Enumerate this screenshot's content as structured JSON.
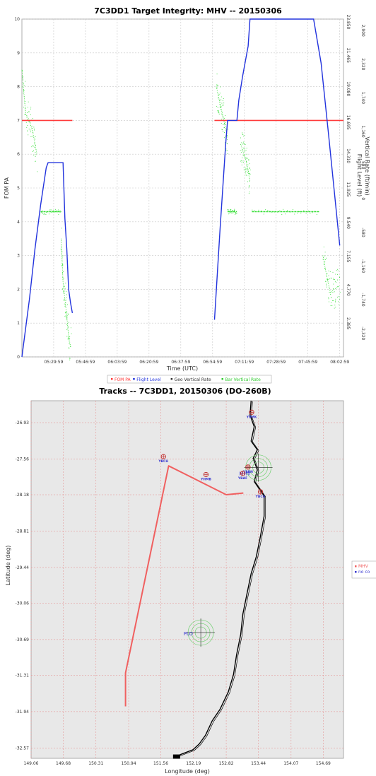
{
  "chart_data": [
    {
      "type": "line",
      "title": "7C3DD1 Target Integrity: MHV -- 20150306",
      "xlabel": "Time (UTC)",
      "ylabel": "FOM PA",
      "ylabel_right_1": "Flight Level (ft)",
      "ylabel_right_2": "Vertical Rate (ft/min)",
      "x_ticks": [
        "05:29:59",
        "05:46:59",
        "06:03:59",
        "06:20:59",
        "06:37:59",
        "06:54:59",
        "07:11:59",
        "07:28:59",
        "07:45:59",
        "08:02:59"
      ],
      "y_ticks": [
        "0",
        "1",
        "2",
        "3",
        "4",
        "5",
        "6",
        "7",
        "8",
        "9",
        "10"
      ],
      "y_right_1_ticks": [
        "2.385",
        "4.770",
        "7.155",
        "9.540",
        "11.925",
        "14.310",
        "16.695",
        "19.080",
        "21.465",
        "23.850"
      ],
      "y_right_2_ticks": [
        "-2,320",
        "-1,740",
        "-1,160",
        "-580",
        "0",
        "580",
        "1,160",
        "1,740",
        "2,320",
        "2,900"
      ],
      "ylim": [
        0,
        10
      ],
      "legend": [
        "FOM PA",
        "Flight Level",
        "Geo Vertical Rate",
        "Bar Vertical Rate"
      ],
      "legend_placement": "bottom",
      "series": [
        {
          "name": "FOM PA",
          "color": "#ff3b3b",
          "segments": [
            {
              "x": [
                "05:13",
                "05:40"
              ],
              "y": [
                7,
                7
              ]
            },
            {
              "x": [
                "06:56",
                "08:05"
              ],
              "y": [
                7,
                7
              ]
            }
          ]
        },
        {
          "name": "Flight Level",
          "color": "#2233dd",
          "segments": [
            {
              "x": [
                "05:13",
                "05:17",
                "05:20",
                "05:23",
                "05:26",
                "05:27",
                "05:35",
                "05:36",
                "05:37",
                "05:38",
                "05:39",
                "05:40"
              ],
              "y": [
                0,
                1.7,
                3.2,
                4.5,
                5.6,
                5.75,
                5.75,
                4.1,
                3.2,
                2.0,
                1.6,
                1.3
              ]
            },
            {
              "x": [
                "06:56",
                "06:59",
                "07:02",
                "07:03",
                "07:08",
                "07:09",
                "07:11",
                "07:14",
                "07:15",
                "07:19",
                "07:49",
                "07:53",
                "07:57",
                "08:01",
                "08:03"
              ],
              "y": [
                1.1,
                3.8,
                6.3,
                7.0,
                7.0,
                7.6,
                8.3,
                9.2,
                10.0,
                10.0,
                10.0,
                8.7,
                6.6,
                4.4,
                3.3
              ]
            }
          ]
        },
        {
          "name": "Bar Vertical Rate",
          "color": "#33dd33",
          "segments": [
            {
              "x": [
                "05:13",
                "05:15",
                "05:17",
                "05:19",
                "05:21"
              ],
              "y": [
                8.5,
                7.2,
                7.0,
                6.6,
                6.0
              ]
            },
            {
              "x": [
                "05:23",
                "05:34"
              ],
              "y": [
                4.3,
                4.3
              ]
            },
            {
              "x": [
                "05:34",
                "05:35",
                "05:37",
                "05:38",
                "05:39"
              ],
              "y": [
                3.5,
                2.2,
                1.2,
                0.6,
                0.3
              ]
            },
            {
              "x": [
                "06:57",
                "06:59",
                "07:01",
                "07:03"
              ],
              "y": [
                8.0,
                7.5,
                7.0,
                6.5
              ]
            },
            {
              "x": [
                "07:03",
                "07:08"
              ],
              "y": [
                4.3,
                4.3
              ]
            },
            {
              "x": [
                "07:10",
                "07:13",
                "07:15"
              ],
              "y": [
                6.3,
                5.8,
                5.2
              ]
            },
            {
              "x": [
                "07:16",
                "07:52"
              ],
              "y": [
                4.3,
                4.3
              ]
            },
            {
              "x": [
                "07:54",
                "07:56",
                "07:58",
                "08:00",
                "08:03"
              ],
              "y": [
                3.0,
                2.4,
                1.9,
                2.0,
                2.1
              ]
            }
          ]
        }
      ]
    },
    {
      "type": "scatter",
      "title": "Tracks -- 7C3DD1, 20150306 (DO-260B)",
      "xlabel": "Longitude (deg)",
      "ylabel": "Latitude (deg)",
      "x_ticks": [
        "149.06",
        "149.68",
        "150.31",
        "150.94",
        "151.56",
        "152.19",
        "152.82",
        "153.44",
        "154.07",
        "154.69"
      ],
      "y_ticks": [
        "-26.93",
        "-27.56",
        "-28.18",
        "-28.81",
        "-29.44",
        "-30.06",
        "-30.69",
        "-31.31",
        "-31.94",
        "-32.57"
      ],
      "legend": [
        "MHV",
        "no co"
      ],
      "legend_placement": "right",
      "track": {
        "name": "MHV",
        "color": "#f06060",
        "lon": [
          150.88,
          150.88,
          151.71,
          152.82,
          153.15
        ],
        "lat": [
          -31.85,
          -31.27,
          -27.68,
          -28.18,
          -28.15
        ]
      },
      "coastline_color": "#000000",
      "markers": [
        {
          "label": "YBMK",
          "lon": 153.31,
          "lat": -26.75
        },
        {
          "label": "YBCH",
          "lon": 151.61,
          "lat": -27.52
        },
        {
          "label": "YBBN",
          "lon": 153.24,
          "lat": -27.7
        },
        {
          "label": "YBAF",
          "lon": 153.14,
          "lat": -27.81
        },
        {
          "label": "YHMB",
          "lon": 152.43,
          "lat": -27.83
        },
        {
          "label": "YBCG",
          "lon": 153.48,
          "lat": -28.13
        }
      ],
      "sites": [
        {
          "label": "MHV",
          "lon": 153.44,
          "lat": -27.71
        },
        {
          "label": "PLO",
          "lon": 152.33,
          "lat": -30.57
        }
      ]
    }
  ]
}
